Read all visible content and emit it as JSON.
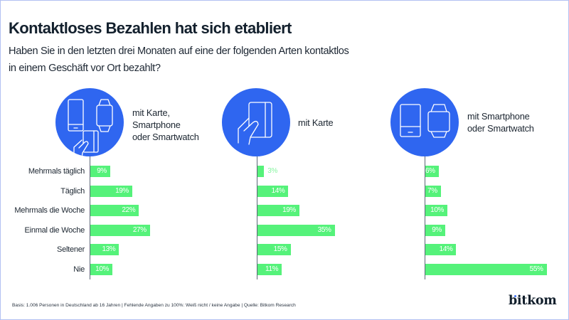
{
  "header": {
    "title": "Kontaktloses Bezahlen hat sich etabliert",
    "subtitle_lines": [
      "Haben Sie in den letzten drei Monaten auf eine der folgenden Arten kontaktlos",
      "in einem Geschäft vor Ort bezahlt?"
    ]
  },
  "colors": {
    "circle": "#2f66f0",
    "bar": "#55f27a",
    "text": "#13202d"
  },
  "icons": {
    "panel_0": [
      "smartphone-icon",
      "smartwatch-icon",
      "card-in-hand-icon"
    ],
    "panel_1": [
      "card-in-hand-icon"
    ],
    "panel_2": [
      "smartphone-icon",
      "smartwatch-icon"
    ]
  },
  "chart_data": [
    {
      "type": "bar",
      "orientation": "horizontal",
      "title": "mit Karte, Smartphone oder Smartwatch",
      "title_lines": [
        "mit Karte,",
        "Smartphone",
        "oder Smartwatch"
      ],
      "categories": [
        "Mehrmals täglich",
        "Täglich",
        "Mehrmals die Woche",
        "Einmal die Woche",
        "Seltener",
        "Nie"
      ],
      "values": [
        9,
        19,
        22,
        27,
        13,
        10
      ],
      "data_labels": [
        "9%",
        "19%",
        "22%",
        "27%",
        "13%",
        "10%"
      ],
      "unit": "%",
      "xlim": [
        0,
        100
      ],
      "grid": false
    },
    {
      "type": "bar",
      "orientation": "horizontal",
      "title": "mit Karte",
      "title_lines": [
        "mit Karte"
      ],
      "categories": [
        "Mehrmals täglich",
        "Täglich",
        "Mehrmals die Woche",
        "Einmal die Woche",
        "Seltener",
        "Nie"
      ],
      "values": [
        3,
        14,
        19,
        35,
        15,
        11
      ],
      "data_labels": [
        "3%",
        "14%",
        "19%",
        "35%",
        "15%",
        "11%"
      ],
      "unit": "%",
      "xlim": [
        0,
        100
      ],
      "grid": false
    },
    {
      "type": "bar",
      "orientation": "horizontal",
      "title": "mit Smartphone oder Smartwatch",
      "title_lines": [
        "mit Smartphone",
        "oder Smartwatch"
      ],
      "categories": [
        "Mehrmals täglich",
        "Täglich",
        "Mehrmals die Woche",
        "Einmal die Woche",
        "Seltener",
        "Nie"
      ],
      "values": [
        6,
        7,
        10,
        9,
        14,
        55
      ],
      "data_labels": [
        "6%",
        "7%",
        "10%",
        "9%",
        "14%",
        "55%"
      ],
      "unit": "%",
      "xlim": [
        0,
        100
      ],
      "grid": false
    }
  ],
  "footer": {
    "note": "Basis: 1.006 Personen in Deutschland ab 16 Jahren | Fehlende Angaben zu 100%: Weiß nicht / keine Angabe | Quelle: Bitkom Research"
  },
  "logo": {
    "text": "bitkom"
  }
}
